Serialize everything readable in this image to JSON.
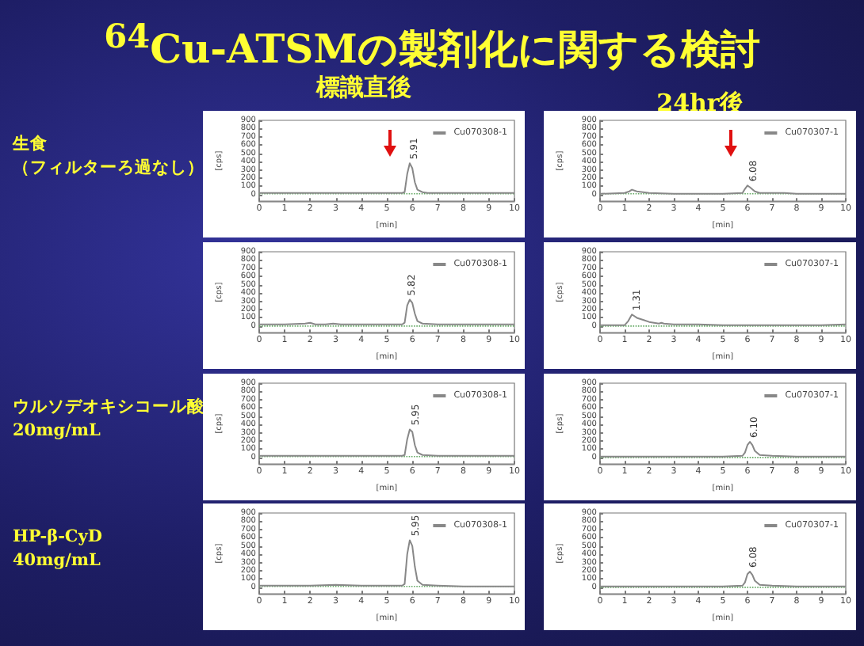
{
  "chart_data": [
    {
      "type": "line",
      "title": "$^{64}$Cu-ATSMの製剤化に関する検討",
      "subtitle": "標識直後",
      "annotations": [
        "生食",
        "（フィルターろ過なし）",
        {
          "text": "5.91",
          "x": 5.91,
          "y": 390
        }
      ],
      "xlabel": "[min]",
      "ylabel": "[cps]",
      "xlim": [
        0,
        10
      ],
      "ylim": [
        -80,
        900
      ],
      "xticks": [
        0,
        1,
        2,
        3,
        4,
        5,
        6,
        7,
        8,
        9,
        10
      ],
      "yticks": [
        0,
        100,
        200,
        300,
        400,
        500,
        600,
        700,
        800,
        900
      ],
      "grid": false,
      "legend": "top right",
      "series": [
        {
          "name": "Cu070308-1",
          "color": "#888888",
          "x": [
            0,
            1,
            2,
            3,
            4,
            5,
            5.6,
            5.7,
            5.8,
            5.9,
            6.0,
            6.1,
            6.2,
            6.4,
            6.6,
            7,
            8,
            9,
            10
          ],
          "values": [
            20,
            20,
            20,
            20,
            20,
            20,
            20,
            30,
            250,
            380,
            320,
            150,
            60,
            30,
            20,
            20,
            20,
            20,
            20
          ]
        },
        {
          "color": "#66aa66",
          "line_style": "dotted",
          "x": [
            0,
            10
          ],
          "values": [
            10,
            10
          ]
        }
      ]
    },
    {
      "type": "line",
      "subtitle": "24hr後",
      "annotations": [
        {
          "text": "6.08",
          "x": 6.08,
          "y": 120
        }
      ],
      "xlabel": "[min]",
      "ylabel": "[cps]",
      "xlim": [
        0,
        10
      ],
      "ylim": [
        -80,
        900
      ],
      "xticks": [
        0,
        1,
        2,
        3,
        4,
        5,
        6,
        7,
        8,
        9,
        10
      ],
      "yticks": [
        0,
        100,
        200,
        300,
        400,
        500,
        600,
        700,
        800,
        900
      ],
      "grid": false,
      "legend": "top right",
      "series": [
        {
          "name": "Cu070307-1",
          "color": "#888888",
          "x": [
            0,
            1,
            1.2,
            1.3,
            1.5,
            2,
            3,
            4,
            5,
            5.8,
            5.9,
            6.0,
            6.1,
            6.3,
            6.5,
            7,
            7.5,
            8,
            9,
            10
          ],
          "values": [
            10,
            20,
            40,
            60,
            40,
            20,
            10,
            10,
            10,
            20,
            70,
            110,
            90,
            40,
            20,
            20,
            20,
            10,
            10,
            10
          ]
        },
        {
          "color": "#66aa66",
          "line_style": "dotted",
          "x": [
            0,
            10
          ],
          "values": [
            10,
            10
          ]
        }
      ]
    },
    {
      "type": "line",
      "annotations": [
        {
          "text": "5.82",
          "x": 5.82,
          "y": 330
        }
      ],
      "xlabel": "[min]",
      "ylabel": "[cps]",
      "xlim": [
        0,
        10
      ],
      "ylim": [
        -80,
        900
      ],
      "xticks": [
        0,
        1,
        2,
        3,
        4,
        5,
        6,
        7,
        8,
        9,
        10
      ],
      "yticks": [
        0,
        100,
        200,
        300,
        400,
        500,
        600,
        700,
        800,
        900
      ],
      "grid": false,
      "legend": "top right",
      "series": [
        {
          "name": "Cu070308-1",
          "color": "#888888",
          "x": [
            0,
            1,
            1.8,
            2.0,
            2.2,
            2.6,
            2.9,
            3.2,
            4,
            5,
            5.6,
            5.7,
            5.8,
            5.9,
            6.0,
            6.1,
            6.2,
            6.4,
            7,
            8,
            9,
            10
          ],
          "values": [
            20,
            20,
            30,
            40,
            20,
            20,
            30,
            20,
            20,
            20,
            20,
            40,
            250,
            320,
            280,
            150,
            60,
            30,
            20,
            20,
            20,
            20
          ]
        },
        {
          "color": "#66aa66",
          "line_style": "dotted",
          "x": [
            0,
            10
          ],
          "values": [
            0,
            0
          ]
        }
      ]
    },
    {
      "type": "line",
      "annotations": [
        {
          "text": "1.31",
          "x": 1.31,
          "y": 150
        }
      ],
      "xlabel": "[min]",
      "ylabel": "[cps]",
      "xlim": [
        0,
        10
      ],
      "ylim": [
        -80,
        900
      ],
      "xticks": [
        0,
        1,
        2,
        3,
        4,
        5,
        6,
        7,
        8,
        9,
        10
      ],
      "yticks": [
        0,
        100,
        200,
        300,
        400,
        500,
        600,
        700,
        800,
        900
      ],
      "grid": false,
      "legend": "top right",
      "series": [
        {
          "name": "Cu070307-1",
          "color": "#888888",
          "x": [
            0,
            1,
            1.15,
            1.3,
            1.5,
            1.8,
            2.0,
            2.4,
            2.5,
            2.6,
            3,
            4,
            5,
            6,
            7,
            8,
            9,
            10
          ],
          "values": [
            10,
            10,
            60,
            140,
            100,
            70,
            50,
            30,
            40,
            30,
            20,
            20,
            10,
            10,
            10,
            10,
            10,
            20
          ]
        },
        {
          "color": "#66aa66",
          "line_style": "dotted",
          "x": [
            0,
            10
          ],
          "values": [
            0,
            0
          ]
        }
      ]
    },
    {
      "type": "line",
      "annotations": [
        "ウルソデオキシコール酸",
        "20mg/mL",
        {
          "text": "5.95",
          "x": 5.95,
          "y": 350
        }
      ],
      "xlabel": "[min]",
      "ylabel": "[cps]",
      "xlim": [
        0,
        10
      ],
      "ylim": [
        -80,
        900
      ],
      "xticks": [
        0,
        1,
        2,
        3,
        4,
        5,
        6,
        7,
        8,
        9,
        10
      ],
      "yticks": [
        0,
        100,
        200,
        300,
        400,
        500,
        600,
        700,
        800,
        900
      ],
      "grid": false,
      "legend": "top right",
      "series": [
        {
          "name": "Cu070308-1",
          "color": "#888888",
          "x": [
            0,
            1,
            2,
            3,
            4,
            5,
            5.6,
            5.7,
            5.8,
            5.9,
            6.0,
            6.1,
            6.2,
            6.4,
            7,
            8,
            9,
            10
          ],
          "values": [
            20,
            20,
            20,
            20,
            20,
            20,
            20,
            30,
            220,
            340,
            310,
            150,
            60,
            30,
            20,
            20,
            20,
            20
          ]
        },
        {
          "color": "#66aa66",
          "line_style": "dotted",
          "x": [
            0,
            10
          ],
          "values": [
            10,
            10
          ]
        }
      ]
    },
    {
      "type": "line",
      "annotations": [
        {
          "text": "6.10",
          "x": 6.1,
          "y": 200
        }
      ],
      "xlabel": "[min]",
      "ylabel": "[cps]",
      "xlim": [
        0,
        10
      ],
      "ylim": [
        -80,
        900
      ],
      "xticks": [
        0,
        1,
        2,
        3,
        4,
        5,
        6,
        7,
        8,
        9,
        10
      ],
      "yticks": [
        0,
        100,
        200,
        300,
        400,
        500,
        600,
        700,
        800,
        900
      ],
      "grid": false,
      "legend": "top right",
      "series": [
        {
          "name": "Cu070307-1",
          "color": "#888888",
          "x": [
            0,
            1,
            2,
            3,
            4,
            5,
            5.8,
            5.9,
            6.0,
            6.1,
            6.2,
            6.3,
            6.5,
            7,
            8,
            9,
            10
          ],
          "values": [
            10,
            10,
            10,
            10,
            10,
            10,
            20,
            60,
            150,
            190,
            150,
            80,
            30,
            20,
            10,
            10,
            10
          ]
        },
        {
          "color": "#66aa66",
          "line_style": "dotted",
          "x": [
            0,
            10
          ],
          "values": [
            0,
            0
          ]
        }
      ]
    },
    {
      "type": "line",
      "annotations": [
        "HP-β-CyD",
        "40mg/mL",
        {
          "text": "5.95",
          "x": 5.95,
          "y": 580
        }
      ],
      "xlabel": "[min]",
      "ylabel": "[cps]",
      "xlim": [
        0,
        10
      ],
      "ylim": [
        -80,
        900
      ],
      "xticks": [
        0,
        1,
        2,
        3,
        4,
        5,
        6,
        7,
        8,
        9,
        10
      ],
      "yticks": [
        0,
        100,
        200,
        300,
        400,
        500,
        600,
        700,
        800,
        900
      ],
      "grid": false,
      "legend": "top right",
      "series": [
        {
          "name": "Cu070308-1",
          "color": "#888888",
          "x": [
            0,
            1,
            2,
            3,
            4,
            5,
            5.6,
            5.7,
            5.8,
            5.9,
            6.0,
            6.1,
            6.2,
            6.4,
            7,
            8,
            9,
            10
          ],
          "values": [
            20,
            20,
            20,
            30,
            20,
            20,
            20,
            40,
            400,
            570,
            500,
            250,
            80,
            30,
            20,
            10,
            10,
            10
          ]
        },
        {
          "color": "#66aa66",
          "line_style": "dotted",
          "x": [
            0,
            10
          ],
          "values": [
            10,
            10
          ]
        }
      ]
    },
    {
      "type": "line",
      "annotations": [
        {
          "text": "6.08",
          "x": 6.08,
          "y": 200
        }
      ],
      "xlabel": "[min]",
      "ylabel": "[cps]",
      "xlim": [
        0,
        10
      ],
      "ylim": [
        -80,
        900
      ],
      "xticks": [
        0,
        1,
        2,
        3,
        4,
        5,
        6,
        7,
        8,
        9,
        10
      ],
      "yticks": [
        0,
        100,
        200,
        300,
        400,
        500,
        600,
        700,
        800,
        900
      ],
      "grid": false,
      "legend": "top right",
      "series": [
        {
          "name": "Cu070307-1",
          "color": "#888888",
          "x": [
            0,
            1,
            2,
            3,
            4,
            5,
            5.8,
            5.9,
            6.0,
            6.1,
            6.2,
            6.3,
            6.5,
            7,
            8,
            9,
            10
          ],
          "values": [
            10,
            10,
            10,
            10,
            10,
            10,
            20,
            60,
            160,
            190,
            150,
            80,
            30,
            20,
            10,
            10,
            10
          ]
        },
        {
          "color": "#66aa66",
          "line_style": "dotted",
          "x": [
            0,
            10
          ],
          "values": [
            0,
            0
          ]
        }
      ]
    }
  ]
}
